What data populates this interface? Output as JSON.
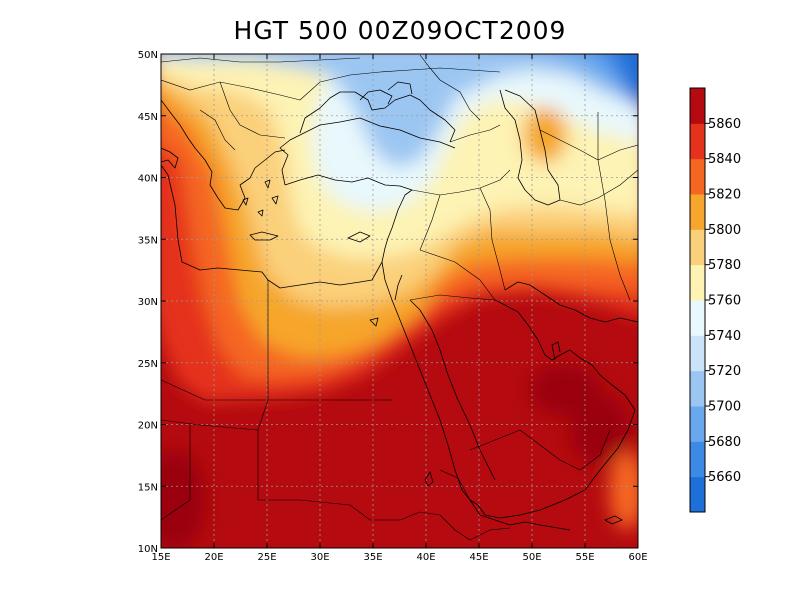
{
  "title": "HGT 500 00Z09OCT2009",
  "map": {
    "lon_range": [
      15,
      60
    ],
    "lat_range": [
      10,
      50
    ],
    "lon_ticks": [
      "15E",
      "20E",
      "25E",
      "30E",
      "35E",
      "40E",
      "45E",
      "50E",
      "55E",
      "60E"
    ],
    "lat_ticks": [
      "10N",
      "15N",
      "20N",
      "25N",
      "30N",
      "35N",
      "40N",
      "45N",
      "50N"
    ],
    "grid": true
  },
  "colorbar": {
    "levels": [
      5660,
      5680,
      5700,
      5720,
      5740,
      5760,
      5780,
      5800,
      5820,
      5840,
      5860
    ],
    "labels": [
      "5660",
      "5680",
      "5700",
      "5720",
      "5740",
      "5760",
      "5780",
      "5800",
      "5820",
      "5840",
      "5860"
    ],
    "colors": [
      "#1e6fd8",
      "#3d8ae6",
      "#6aa8ee",
      "#9cc6f2",
      "#cbe3f8",
      "#e8f8fc",
      "#fdf3b4",
      "#fbd07a",
      "#f6a62c",
      "#f56620",
      "#e5321c",
      "#b40a10"
    ]
  },
  "colors": {
    "coastline": "#000000",
    "grid": "#9a9a9a"
  }
}
